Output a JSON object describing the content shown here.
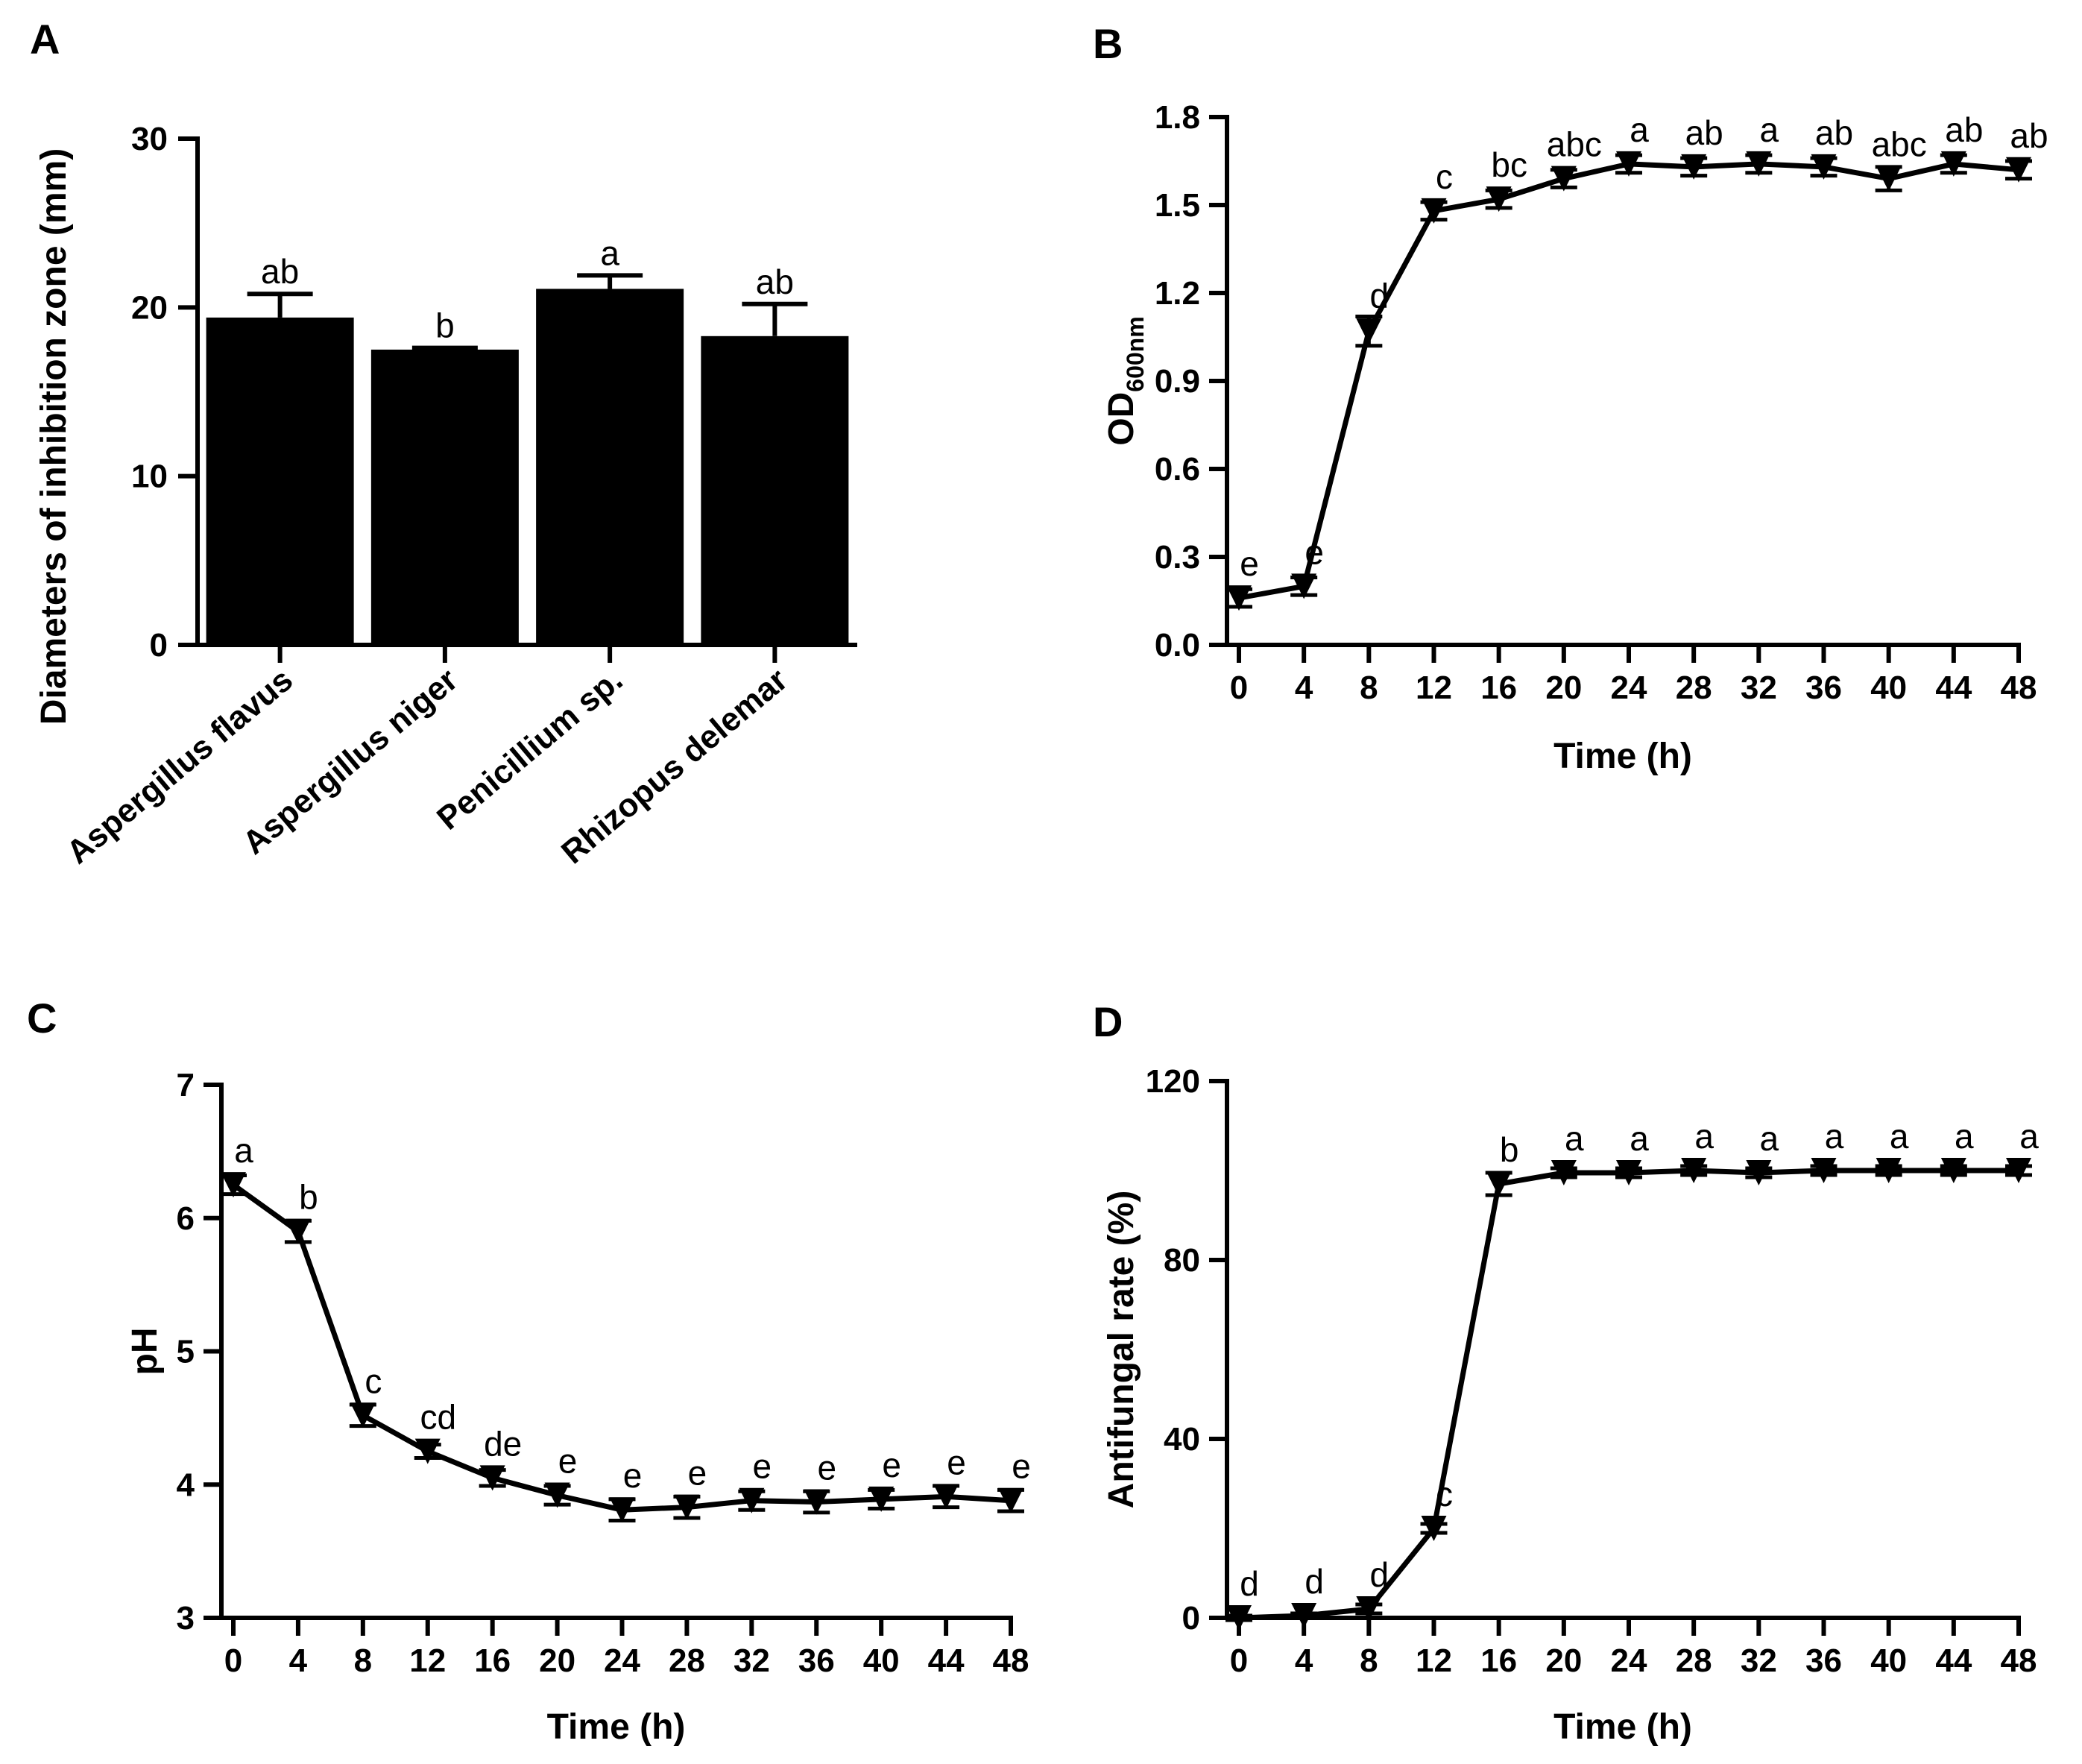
{
  "figure": {
    "background": "#ffffff",
    "ink": "#000000"
  },
  "chart_data": [
    {
      "panel": "A",
      "type": "bar",
      "categories": [
        "Aspergillus flavus",
        "Aspergillus niger",
        "Penicillium sp.",
        "Rhizopus delemar"
      ],
      "values": [
        19.4,
        17.5,
        21.1,
        18.3
      ],
      "errors": [
        1.4,
        0.1,
        0.8,
        1.9
      ],
      "letters": [
        "ab",
        "b",
        "a",
        "ab"
      ],
      "ylabel": "Diameters of inhibition zone (mm)",
      "xlabel": "",
      "ylim": [
        0,
        30
      ],
      "yticks": [
        0,
        10,
        20,
        30
      ],
      "bar_color": "#000000",
      "grid": false
    },
    {
      "panel": "B",
      "type": "line",
      "x": [
        0,
        4,
        8,
        12,
        16,
        20,
        24,
        28,
        32,
        36,
        40,
        44,
        48
      ],
      "y": [
        0.16,
        0.2,
        1.07,
        1.48,
        1.52,
        1.59,
        1.64,
        1.63,
        1.64,
        1.63,
        1.59,
        1.64,
        1.62
      ],
      "errors": [
        0.03,
        0.03,
        0.05,
        0.03,
        0.03,
        0.03,
        0.03,
        0.03,
        0.03,
        0.03,
        0.04,
        0.03,
        0.03
      ],
      "letters": [
        "e",
        "e",
        "d",
        "c",
        "bc",
        "abc",
        "a",
        "ab",
        "a",
        "ab",
        "abc",
        "ab",
        "ab"
      ],
      "ylabel_main": "OD",
      "ylabel_sub": "600nm",
      "xlabel": "Time (h)",
      "ylim": [
        0,
        1.8
      ],
      "yticks": [
        "0.0",
        "0.3",
        "0.6",
        "0.9",
        "1.2",
        "1.5",
        "1.8"
      ],
      "xticks": [
        "0",
        "4",
        "8",
        "12",
        "16",
        "20",
        "24",
        "28",
        "32",
        "36",
        "40",
        "44",
        "48"
      ],
      "xlim": [
        0,
        48
      ],
      "marker": "down-triangle",
      "grid": false
    },
    {
      "panel": "C",
      "type": "line",
      "x": [
        0,
        4,
        8,
        12,
        16,
        20,
        24,
        28,
        32,
        36,
        40,
        44,
        48
      ],
      "y": [
        6.25,
        5.9,
        4.52,
        4.25,
        4.05,
        3.92,
        3.81,
        3.83,
        3.88,
        3.87,
        3.89,
        3.91,
        3.88
      ],
      "errors": [
        0.07,
        0.08,
        0.08,
        0.05,
        0.06,
        0.07,
        0.08,
        0.08,
        0.07,
        0.08,
        0.07,
        0.08,
        0.08
      ],
      "letters": [
        "a",
        "b",
        "c",
        "cd",
        "de",
        "e",
        "e",
        "e",
        "e",
        "e",
        "e",
        "e",
        "e"
      ],
      "ylabel": "pH",
      "xlabel": "Time (h)",
      "ylim": [
        3,
        7
      ],
      "yticks": [
        "3",
        "4",
        "5",
        "6",
        "7"
      ],
      "xticks": [
        "0",
        "4",
        "8",
        "12",
        "16",
        "20",
        "24",
        "28",
        "32",
        "36",
        "40",
        "44",
        "48"
      ],
      "xlim": [
        0,
        48
      ],
      "marker": "down-triangle",
      "grid": false
    },
    {
      "panel": "D",
      "type": "line",
      "x": [
        0,
        4,
        8,
        12,
        16,
        20,
        24,
        28,
        32,
        36,
        40,
        44,
        48
      ],
      "y": [
        0,
        0.5,
        2,
        20,
        97,
        99.5,
        99.5,
        100,
        99.5,
        100,
        100,
        100,
        100
      ],
      "errors": [
        0.5,
        0.5,
        1,
        1,
        2.5,
        1,
        1,
        1,
        1,
        1,
        1,
        1,
        1
      ],
      "letters": [
        "d",
        "d",
        "d",
        "c",
        "b",
        "a",
        "a",
        "a",
        "a",
        "a",
        "a",
        "a",
        "a"
      ],
      "ylabel": "Antifungal rate (%)",
      "xlabel": "Time (h)",
      "ylim": [
        0,
        120
      ],
      "yticks": [
        "0",
        "40",
        "80",
        "120"
      ],
      "xticks": [
        "0",
        "4",
        "8",
        "12",
        "16",
        "20",
        "24",
        "28",
        "32",
        "36",
        "40",
        "44",
        "48"
      ],
      "xlim": [
        0,
        48
      ],
      "marker": "down-triangle",
      "grid": false
    }
  ]
}
